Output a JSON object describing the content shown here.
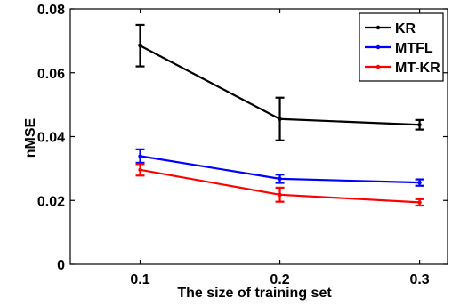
{
  "chart_data": {
    "type": "line",
    "title": "",
    "xlabel": "The size of training set",
    "ylabel": "nMSE",
    "x": [
      0.1,
      0.2,
      0.3
    ],
    "x_ticks": [
      "0.1",
      "0.2",
      "0.3"
    ],
    "y_ticks": [
      "0",
      "0.02",
      "0.04",
      "0.06",
      "0.08"
    ],
    "xlim": [
      0.05,
      0.32
    ],
    "ylim": [
      0,
      0.08
    ],
    "grid": false,
    "legend_position": "top-right",
    "series": [
      {
        "name": "KR",
        "color": "#000000",
        "values": [
          0.0685,
          0.0455,
          0.0437
        ],
        "err_low": [
          0.062,
          0.0388,
          0.0422
        ],
        "err_high": [
          0.075,
          0.0522,
          0.0452
        ]
      },
      {
        "name": "MTFL",
        "color": "#0000ff",
        "values": [
          0.0339,
          0.0268,
          0.0256
        ],
        "err_low": [
          0.0318,
          0.0255,
          0.0246
        ],
        "err_high": [
          0.036,
          0.0281,
          0.0266
        ]
      },
      {
        "name": "MT-KR",
        "color": "#ff0000",
        "values": [
          0.0296,
          0.0218,
          0.0194
        ],
        "err_low": [
          0.0278,
          0.0196,
          0.0184
        ],
        "err_high": [
          0.0314,
          0.024,
          0.0204
        ]
      }
    ]
  }
}
